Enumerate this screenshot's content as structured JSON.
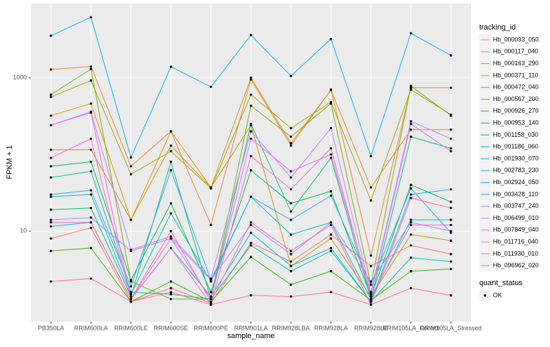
{
  "chart_data": {
    "type": "line",
    "y_label": "FPKM + 1",
    "x_label": "sample_name",
    "legend_title": "tracking_id",
    "point_legend": {
      "title": "quant_status",
      "labels": [
        "OK"
      ],
      "color": "#000000"
    },
    "log_scale": true,
    "grid": true,
    "ylim": [
      0.66,
      9300
    ],
    "yticks": [
      10,
      1000
    ],
    "categories": [
      "PB350LA",
      "RRIM600LA",
      "RRIM600LE",
      "RRIM600SE",
      "RRIM600PE",
      "RRIM901LA",
      "RRIM928LBA",
      "RRIM928LA",
      "RRIM928LE",
      "RRIM105LA_Control",
      "RRIM105LA_Stressed"
    ],
    "series": [
      {
        "name": "Hb_000033_050",
        "color": "#F8766D",
        "values": [
          8,
          11,
          1.2,
          1.8,
          1.15,
          7,
          4,
          9,
          3.5,
          6.5,
          5
        ]
      },
      {
        "name": "Hb_000117_040",
        "color": "#EA8331",
        "values": [
          1280,
          1400,
          70,
          200,
          12,
          950,
          130,
          700,
          4.8,
          740,
          740
        ]
      },
      {
        "name": "Hb_000163_290",
        "color": "#D89000",
        "values": [
          320,
          460,
          14,
          200,
          37,
          1000,
          140,
          690,
          37,
          210,
          210
        ]
      },
      {
        "name": "Hb_000371_110",
        "color": "#C09B00",
        "values": [
          115,
          115,
          14,
          130,
          37,
          240,
          3.5,
          8,
          1.4,
          9,
          7.5
        ]
      },
      {
        "name": "Hb_000472_040",
        "color": "#A3A500",
        "values": [
          560,
          920,
          55,
          110,
          36,
          600,
          220,
          480,
          25,
          700,
          330
        ]
      },
      {
        "name": "Hb_000567_200",
        "color": "#7CAE00",
        "values": [
          600,
          1300,
          2.2,
          1.3,
          1.3,
          430,
          170,
          460,
          2,
          780,
          320
        ]
      },
      {
        "name": "Hb_000926_270",
        "color": "#39B600",
        "values": [
          5.5,
          6,
          1.2,
          2.2,
          1.2,
          4.6,
          2,
          3,
          1.25,
          3,
          3.2
        ]
      },
      {
        "name": "Hb_000953_140",
        "color": "#00BB4E",
        "values": [
          70,
          80,
          2.3,
          23,
          1.6,
          62,
          23,
          33,
          1.4,
          40,
          24
        ]
      },
      {
        "name": "Hb_001158_030",
        "color": "#00BF7D",
        "values": [
          19,
          20,
          1.4,
          80,
          1.3,
          250,
          18,
          90,
          1.3,
          170,
          120
        ]
      },
      {
        "name": "Hb_001186_060",
        "color": "#00C1A3",
        "values": [
          50,
          60,
          1.6,
          1.5,
          1.3,
          6.5,
          3,
          5.5,
          1.2,
          4.5,
          4
        ]
      },
      {
        "name": "Hb_001930_070",
        "color": "#00BFC4",
        "values": [
          28,
          30,
          1.5,
          17,
          2.2,
          28,
          9,
          13,
          1.3,
          14,
          14
        ]
      },
      {
        "name": "Hb_002783_230",
        "color": "#00BAE0",
        "values": [
          11.5,
          13,
          1.3,
          6,
          1.4,
          9.5,
          3.5,
          6,
          1.2,
          30,
          35
        ]
      },
      {
        "name": "Hb_002924_050",
        "color": "#00B0F6",
        "values": [
          3520,
          6150,
          91,
          1390,
          760,
          3600,
          1050,
          3200,
          95,
          3800,
          1950
        ]
      },
      {
        "name": "Hb_003428_110",
        "color": "#35A2FF",
        "values": [
          30,
          34,
          1.9,
          62,
          2.3,
          28,
          14,
          29,
          2,
          36,
          9.5
        ]
      },
      {
        "name": "Hb_003747_240",
        "color": "#9590FF",
        "values": [
          14,
          15,
          5.5,
          8,
          2.3,
          12,
          5,
          13,
          2.2,
          13,
          10
        ]
      },
      {
        "name": "Hb_006499_010",
        "color": "#C77CFF",
        "values": [
          240,
          360,
          5.7,
          8.5,
          2.4,
          200,
          50,
          220,
          1.6,
          270,
          160
        ]
      },
      {
        "name": "Hb_007849_040",
        "color": "#E76BF3",
        "values": [
          240,
          350,
          1.3,
          8,
          1.3,
          160,
          60,
          100,
          1.5,
          250,
          110
        ]
      },
      {
        "name": "Hb_011716_040",
        "color": "#FA62DB",
        "values": [
          90,
          160,
          1.3,
          6,
          1.1,
          95,
          35,
          120,
          1.4,
          12,
          12
        ]
      },
      {
        "name": "Hb_011930_010",
        "color": "#FF62BC",
        "values": [
          13,
          13,
          1.3,
          10,
          1.2,
          13,
          5.5,
          12,
          1.1,
          27,
          20
        ]
      },
      {
        "name": "Hb_096962_020",
        "color": "#FF6C91",
        "values": [
          2.2,
          2.4,
          1.2,
          1.6,
          1.1,
          1.45,
          1.4,
          1.6,
          1.1,
          1.8,
          1.45
        ]
      }
    ]
  }
}
